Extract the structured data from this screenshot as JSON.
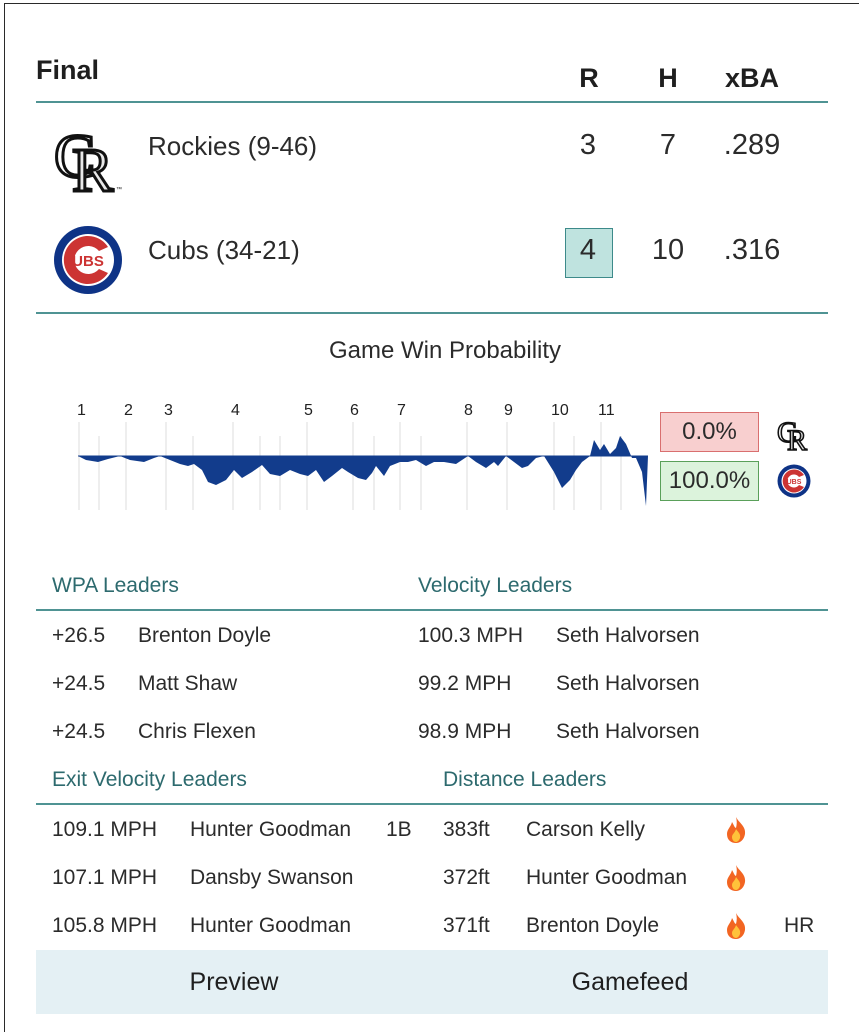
{
  "header": {
    "status": "Final",
    "col_r": "R",
    "col_h": "H",
    "col_xba": "xBA"
  },
  "teams": [
    {
      "name": "Rockies (9-46)",
      "r": "3",
      "h": "7",
      "xba": ".289"
    },
    {
      "name": "Cubs (34-21)",
      "r": "4",
      "h": "10",
      "xba": ".316"
    }
  ],
  "win_prob": {
    "title": "Game Win Probability",
    "innings": [
      "1",
      "2",
      "3",
      "4",
      "5",
      "6",
      "7",
      "8",
      "9",
      "10",
      "11"
    ],
    "away_pct": "0.0%",
    "home_pct": "100.0%",
    "colors": {
      "series": "#123c8c",
      "away_box_bg": "#f8cfcf",
      "home_box_bg": "#dcf3dc"
    }
  },
  "wpa": {
    "title": "WPA Leaders",
    "rows": [
      {
        "value": "+26.5",
        "player": "Brenton Doyle"
      },
      {
        "value": "+24.5",
        "player": "Matt Shaw"
      },
      {
        "value": "+24.5",
        "player": "Chris Flexen"
      }
    ]
  },
  "velocity": {
    "title": "Velocity Leaders",
    "rows": [
      {
        "value": "100.3 MPH",
        "player": "Seth Halvorsen"
      },
      {
        "value": "99.2 MPH",
        "player": "Seth Halvorsen"
      },
      {
        "value": "98.9 MPH",
        "player": "Seth Halvorsen"
      }
    ]
  },
  "exit_velo": {
    "title": "Exit Velocity Leaders",
    "rows": [
      {
        "value": "109.1 MPH",
        "player": "Hunter Goodman",
        "result": "1B"
      },
      {
        "value": "107.1 MPH",
        "player": "Dansby Swanson",
        "result": ""
      },
      {
        "value": "105.8 MPH",
        "player": "Hunter Goodman",
        "result": ""
      }
    ]
  },
  "distance": {
    "title": "Distance Leaders",
    "rows": [
      {
        "value": "383ft",
        "player": "Carson Kelly",
        "icon": "fire-icon",
        "result": ""
      },
      {
        "value": "372ft",
        "player": "Hunter Goodman",
        "icon": "fire-icon",
        "result": ""
      },
      {
        "value": "371ft",
        "player": "Brenton Doyle",
        "icon": "fire-icon",
        "result": "HR"
      }
    ]
  },
  "footer": {
    "preview": "Preview",
    "gamefeed": "Gamefeed"
  },
  "logos": {
    "rockies_text": "CR",
    "cubs_text": "UBS"
  }
}
